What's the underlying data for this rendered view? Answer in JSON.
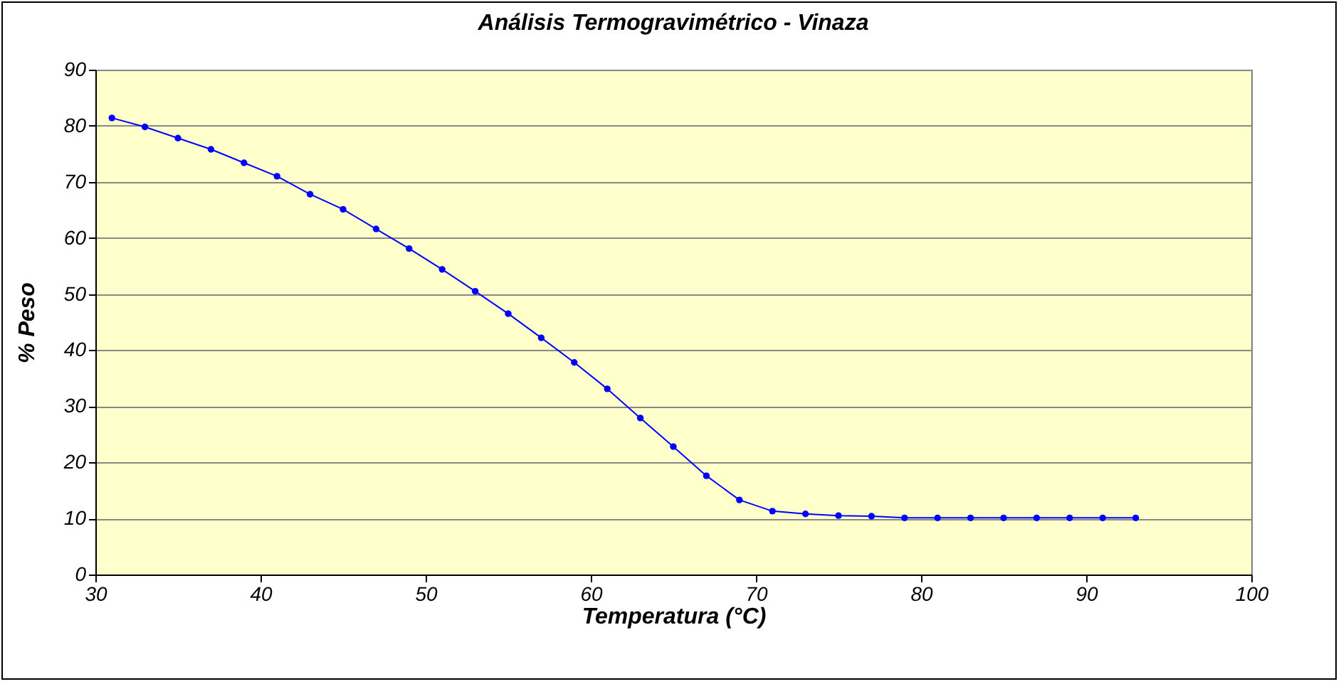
{
  "chart_data": {
    "type": "line",
    "title": "Análisis Termogravimétrico - Vinaza",
    "xlabel": "Temperatura (°C)",
    "ylabel": "% Peso",
    "x": [
      31,
      33,
      35,
      37,
      39,
      41,
      43,
      45,
      47,
      49,
      51,
      53,
      55,
      57,
      59,
      61,
      63,
      65,
      67,
      69,
      71,
      73,
      75,
      77,
      79,
      81,
      83,
      85,
      87,
      89,
      91,
      93
    ],
    "series": [
      {
        "color": "#0000ff",
        "values": [
          81.4,
          79.8,
          77.8,
          75.8,
          73.4,
          71,
          67.8,
          65.1,
          61.6,
          58.1,
          54.4,
          50.5,
          46.5,
          42.2,
          37.8,
          33.1,
          27.9,
          22.8,
          17.6,
          13.3,
          11.3,
          10.8,
          10.5,
          10.4,
          10.1,
          10.1,
          10.1,
          10.1,
          10.1,
          10.1,
          10.1,
          10.1
        ]
      }
    ],
    "xlim": [
      30,
      100
    ],
    "xticks": [
      30,
      40,
      50,
      60,
      70,
      80,
      90,
      100
    ],
    "ylim": [
      0,
      90
    ],
    "yticks": [
      0,
      10,
      20,
      30,
      40,
      50,
      60,
      70,
      80,
      90
    ],
    "grid": "y",
    "marker": "circle",
    "line_style": "solid"
  }
}
